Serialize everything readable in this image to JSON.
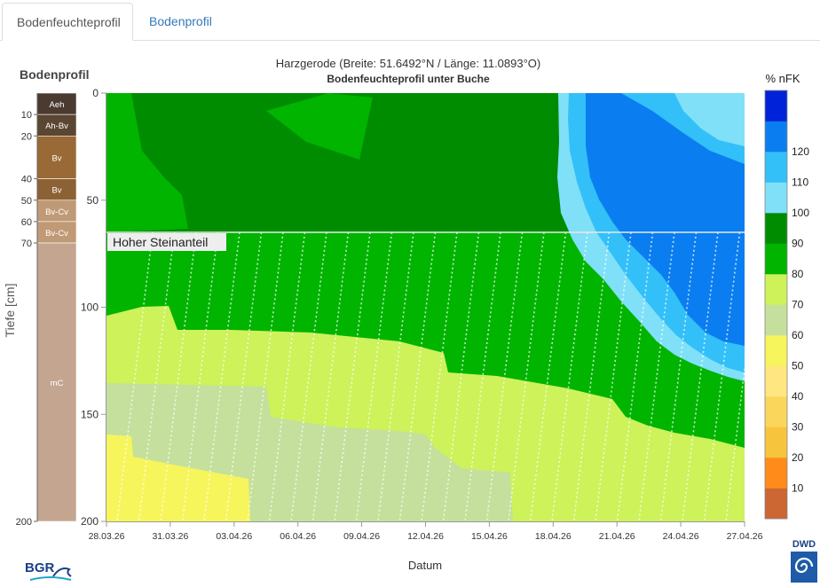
{
  "tabs": [
    {
      "label": "Bodenfeuchteprofil",
      "active": true
    },
    {
      "label": "Bodenprofil",
      "active": false
    }
  ],
  "profile": {
    "title": "Bodenprofil",
    "ylabel": "Tiefe [cm]",
    "horizons": [
      {
        "name": "Aeh",
        "top": 0,
        "bottom": 10,
        "color": "#4a3a30"
      },
      {
        "name": "Ah-Bv",
        "top": 10,
        "bottom": 20,
        "color": "#5a4632"
      },
      {
        "name": "Bv",
        "top": 20,
        "bottom": 40,
        "color": "#9a6a36"
      },
      {
        "name": "Bv",
        "top": 40,
        "bottom": 50,
        "color": "#8c6234"
      },
      {
        "name": "Bv-Cv",
        "top": 50,
        "bottom": 60,
        "color": "#c09a76"
      },
      {
        "name": "Bv-Cv",
        "top": 60,
        "bottom": 70,
        "color": "#c09a76"
      },
      {
        "name": "mC",
        "top": 70,
        "bottom": 200,
        "color": "#c4a590"
      }
    ],
    "depth_ticks": [
      "10",
      "20",
      "40",
      "50",
      "60",
      "70",
      "200"
    ]
  },
  "chart_data": {
    "type": "heatmap",
    "title": "Harzgerode (Breite: 51.6492°N / Länge: 11.0893°O)",
    "subtitle": "Bodenfeuchteprofil unter Buche",
    "xlabel": "Datum",
    "ylabel": "Tiefe [cm]",
    "x_ticks": [
      "28.03.26",
      "31.03.26",
      "03.04.26",
      "06.04.26",
      "09.04.26",
      "12.04.26",
      "15.04.26",
      "18.04.26",
      "21.04.26",
      "24.04.26",
      "27.04.26"
    ],
    "y_ticks": [
      "0",
      "50",
      "100",
      "150",
      "200"
    ],
    "ylim": [
      200,
      0
    ],
    "annotation": {
      "label": "Hoher Steinanteil",
      "depth_from": 65,
      "depth_to": 200
    },
    "legend": {
      "title": "% nFK",
      "levels": [
        {
          "label": "",
          "color": "#cc6633"
        },
        {
          "label": "10",
          "color": "#ff8c1a"
        },
        {
          "label": "20",
          "color": "#f7c43d"
        },
        {
          "label": "30",
          "color": "#fad65a"
        },
        {
          "label": "40",
          "color": "#ffe680"
        },
        {
          "label": "50",
          "color": "#f7f55c"
        },
        {
          "label": "60",
          "color": "#c4e09c"
        },
        {
          "label": "70",
          "color": "#cdf25a"
        },
        {
          "label": "80",
          "color": "#00b400"
        },
        {
          "label": "90",
          "color": "#008c00"
        },
        {
          "label": "100",
          "color": "#80e0f8"
        },
        {
          "label": "110",
          "color": "#33c0f8"
        },
        {
          "label": "120",
          "color": "#0a7ef0"
        },
        {
          "label": "",
          "color": "#0022d8"
        }
      ]
    }
  }
}
